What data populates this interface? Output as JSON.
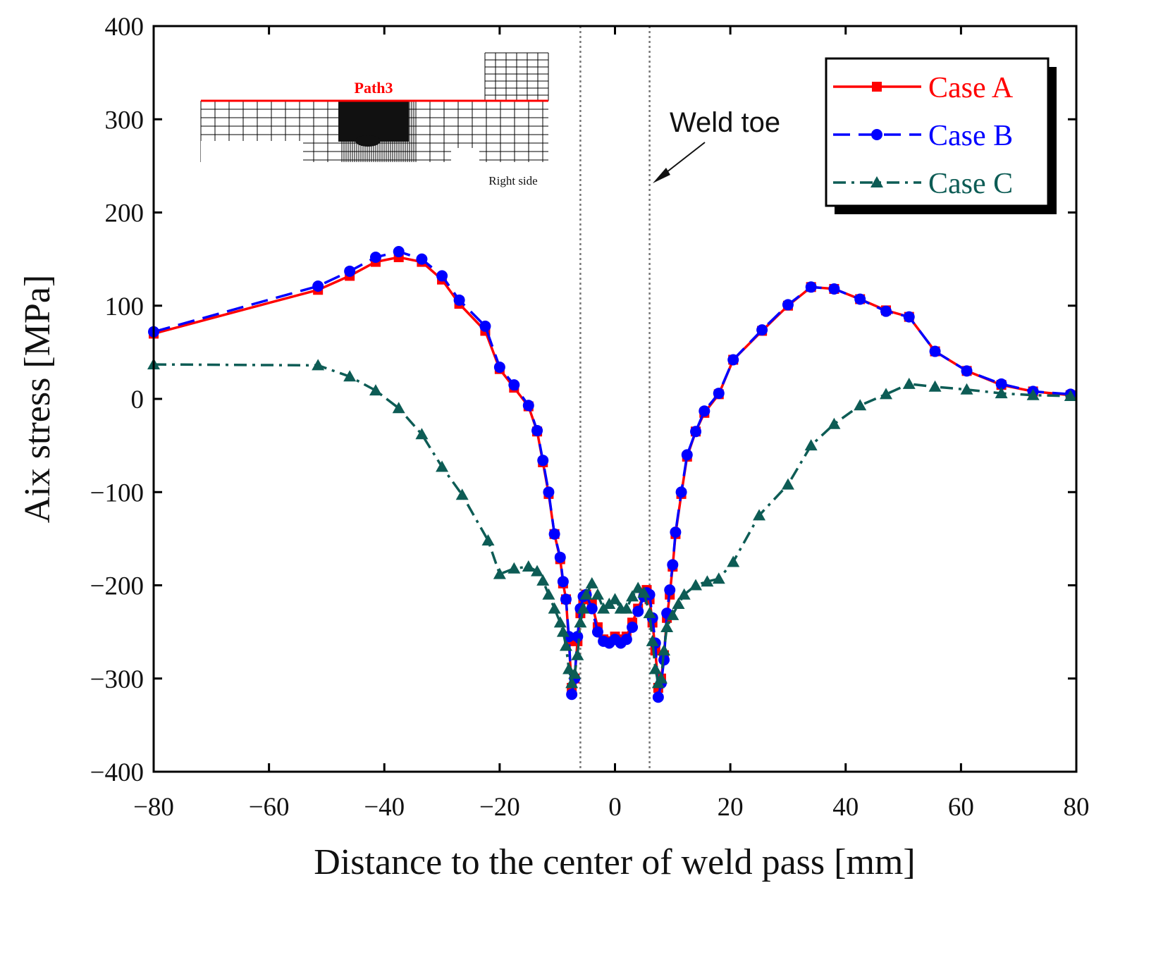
{
  "chart_data": {
    "type": "line",
    "xlabel": "Distance to the center of weld pass [mm]",
    "ylabel": "Aix stress [MPa]",
    "xlim": [
      -80,
      80
    ],
    "xticks": [
      {
        "value": -80,
        "label": "−80"
      },
      {
        "value": -60,
        "label": "−60"
      },
      {
        "value": -40,
        "label": "−40"
      },
      {
        "value": -20,
        "label": "−20"
      },
      0,
      20,
      40,
      60,
      80
    ],
    "ylim": [
      -400,
      400
    ],
    "yticks": [
      {
        "value": -400,
        "label": "−400"
      },
      {
        "value": -300,
        "label": "−300"
      },
      {
        "value": -200,
        "label": "−200"
      },
      {
        "value": -100,
        "label": "−100"
      },
      0,
      100,
      200,
      300,
      400
    ],
    "vlines": [
      -6,
      6
    ],
    "annotations": [
      "Weld toe"
    ],
    "inset_labels": [
      "Path3",
      "Right side"
    ],
    "legend": "upper right",
    "series": [
      {
        "name": "Case A",
        "color": "#ff0000",
        "linestyle": "solid",
        "marker": "square",
        "x": [
          -80,
          -51.5,
          -46,
          -41.5,
          -37.5,
          -33.5,
          -30,
          -27,
          -22.5,
          -20,
          -17.5,
          -15,
          -13.5,
          -12.5,
          -11.5,
          -10.5,
          -9.5,
          -9,
          -8.5,
          -8,
          -7.5,
          -7,
          -6.5,
          -6,
          -5.5,
          -5,
          -4,
          -3,
          -2,
          -1,
          0,
          1,
          2,
          3,
          4,
          5,
          5.5,
          6,
          6.5,
          7,
          7.5,
          8,
          8.5,
          9,
          9.5,
          10,
          10.5,
          11.5,
          12.5,
          14,
          15.5,
          18,
          20.5,
          25.5,
          30,
          34,
          38,
          42.5,
          47,
          51,
          55.5,
          61,
          67,
          72.5,
          79
        ],
        "values": [
          70,
          117,
          132,
          147,
          152,
          147,
          128,
          102,
          73,
          32,
          12,
          -8,
          -35,
          -68,
          -102,
          -145,
          -172,
          -198,
          -215,
          -260,
          -310,
          -300,
          -260,
          -230,
          -215,
          -210,
          -220,
          -245,
          -258,
          -260,
          -255,
          -258,
          -255,
          -240,
          -225,
          -210,
          -205,
          -215,
          -240,
          -270,
          -310,
          -300,
          -275,
          -235,
          -210,
          -180,
          -145,
          -102,
          -62,
          -35,
          -15,
          5,
          42,
          73,
          100,
          120,
          118,
          107,
          95,
          88,
          51,
          30,
          15,
          8,
          4
        ]
      },
      {
        "name": "Case B",
        "color": "#0000ff",
        "linestyle": "dashed",
        "marker": "circle",
        "x": [
          -80,
          -51.5,
          -46,
          -41.5,
          -37.5,
          -33.5,
          -30,
          -27,
          -22.5,
          -20,
          -17.5,
          -15,
          -13.5,
          -12.5,
          -11.5,
          -10.5,
          -9.5,
          -9,
          -8.5,
          -8,
          -7.5,
          -7,
          -6.5,
          -6,
          -5.5,
          -5,
          -4,
          -3,
          -2,
          -1,
          0,
          1,
          2,
          3,
          4,
          5,
          5.5,
          6,
          6.5,
          7,
          7.5,
          8,
          8.5,
          9,
          9.5,
          10,
          10.5,
          11.5,
          12.5,
          14,
          15.5,
          18,
          20.5,
          25.5,
          30,
          34,
          38,
          42.5,
          47,
          51,
          55.5,
          61,
          67,
          72.5,
          79
        ],
        "values": [
          72,
          121,
          137,
          152,
          158,
          150,
          132,
          106,
          78,
          34,
          15,
          -7,
          -34,
          -66,
          -100,
          -145,
          -170,
          -196,
          -215,
          -255,
          -317,
          -300,
          -255,
          -225,
          -212,
          -210,
          -225,
          -250,
          -260,
          -262,
          -258,
          -262,
          -258,
          -245,
          -228,
          -212,
          -208,
          -210,
          -235,
          -262,
          -320,
          -305,
          -280,
          -230,
          -205,
          -178,
          -143,
          -100,
          -60,
          -35,
          -13,
          6,
          42,
          74,
          101,
          120,
          118,
          107,
          94,
          88,
          51,
          30,
          16,
          8,
          5
        ]
      },
      {
        "name": "Case C",
        "color": "#0d5c55",
        "linestyle": "dashdot",
        "marker": "triangle",
        "x": [
          -80,
          -51.5,
          -46,
          -41.5,
          -37.5,
          -33.5,
          -30,
          -26.5,
          -22,
          -20,
          -17.5,
          -15,
          -13.5,
          -12.5,
          -11.5,
          -10.5,
          -9.5,
          -9,
          -8.5,
          -8,
          -7.5,
          -7,
          -6.5,
          -6,
          -5.5,
          -5,
          -4,
          -3,
          -2,
          -1,
          0,
          1,
          2,
          3,
          4,
          5,
          6,
          6.5,
          7,
          7.5,
          8,
          8.5,
          9,
          10,
          11,
          12,
          14,
          16,
          18,
          20.5,
          25,
          30,
          34,
          38,
          42.5,
          47,
          51,
          55.5,
          61,
          67,
          72.5,
          79
        ],
        "values": [
          37,
          36,
          24,
          9,
          -10,
          -38,
          -73,
          -103,
          -152,
          -188,
          -182,
          -180,
          -185,
          -195,
          -210,
          -225,
          -240,
          -250,
          -265,
          -290,
          -305,
          -295,
          -275,
          -240,
          -225,
          -210,
          -198,
          -210,
          -225,
          -220,
          -215,
          -225,
          -225,
          -212,
          -203,
          -208,
          -230,
          -260,
          -290,
          -305,
          -300,
          -270,
          -245,
          -232,
          -220,
          -210,
          -200,
          -196,
          -193,
          -175,
          -125,
          -92,
          -50,
          -27,
          -7,
          5,
          16,
          13,
          10,
          6,
          4,
          3
        ]
      }
    ]
  }
}
